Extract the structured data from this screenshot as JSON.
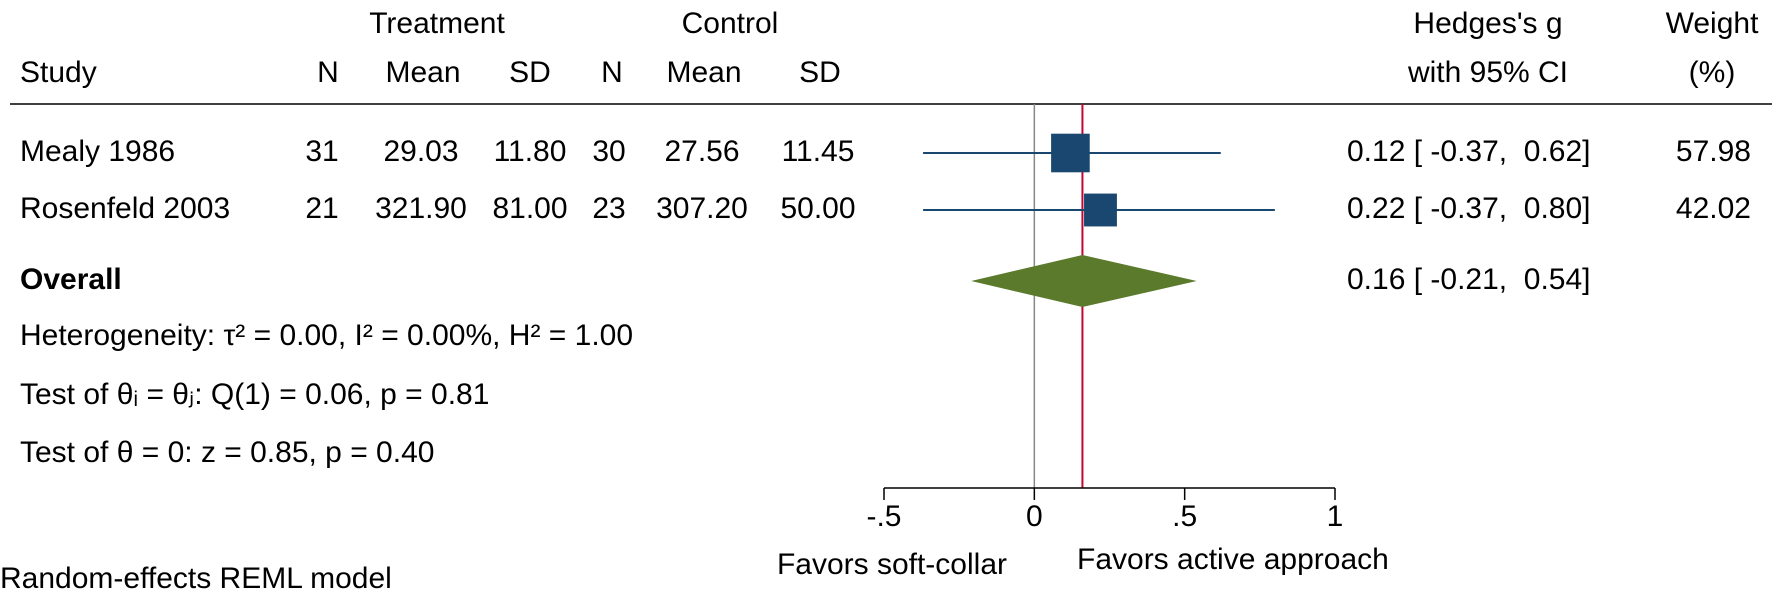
{
  "chart_data": {
    "type": "forest",
    "group_headers": [
      "Treatment",
      "Control"
    ],
    "columns": [
      "Study",
      "N",
      "Mean",
      "SD",
      "N",
      "Mean",
      "SD"
    ],
    "effect_header": [
      "Hedges's g",
      "with 95% CI"
    ],
    "weight_header": [
      "Weight",
      "(%)"
    ],
    "rows": [
      [
        "Mealy 1986",
        "31",
        "29.03",
        "11.80",
        "30",
        "27.56",
        "11.45"
      ],
      [
        "Rosenfeld 2003",
        "21",
        "321.90",
        "81.00",
        "23",
        "307.20",
        "50.00"
      ]
    ],
    "values": [
      0.12,
      0.22
    ],
    "lower": [
      -0.37,
      -0.37
    ],
    "upper": [
      0.62,
      0.8
    ],
    "value_labels": [
      "0.12 [ -0.37,  0.62]",
      "0.22 [ -0.37,  0.80]"
    ],
    "weights": [
      57.98,
      42.02
    ],
    "overall": {
      "name": "Overall",
      "value": 0.16,
      "lower": -0.21,
      "upper": 0.54,
      "value_label": "0.16 [ -0.21,  0.54]"
    },
    "stats": [
      "Heterogeneity: τ² = 0.00, I² = 0.00%, H² = 1.00",
      "Test of θᵢ = θⱼ: Q(1) = 0.06, p = 0.81",
      "Test of θ = 0: z = 0.85, p = 0.40"
    ],
    "reference_line": 0,
    "xlim": [
      -0.5,
      1
    ],
    "xticks": [
      {
        "value": -0.5,
        "label": "-.5"
      },
      0,
      {
        "value": 0.5,
        "label": ".5"
      },
      1
    ],
    "xlabels": [
      "Favors soft-collar",
      "Favors active approach"
    ],
    "footnote": "Random-effects REML model",
    "color": "#1a476f",
    "overall_color": "#5b7a2c",
    "overall_line_color": "#c10534"
  }
}
